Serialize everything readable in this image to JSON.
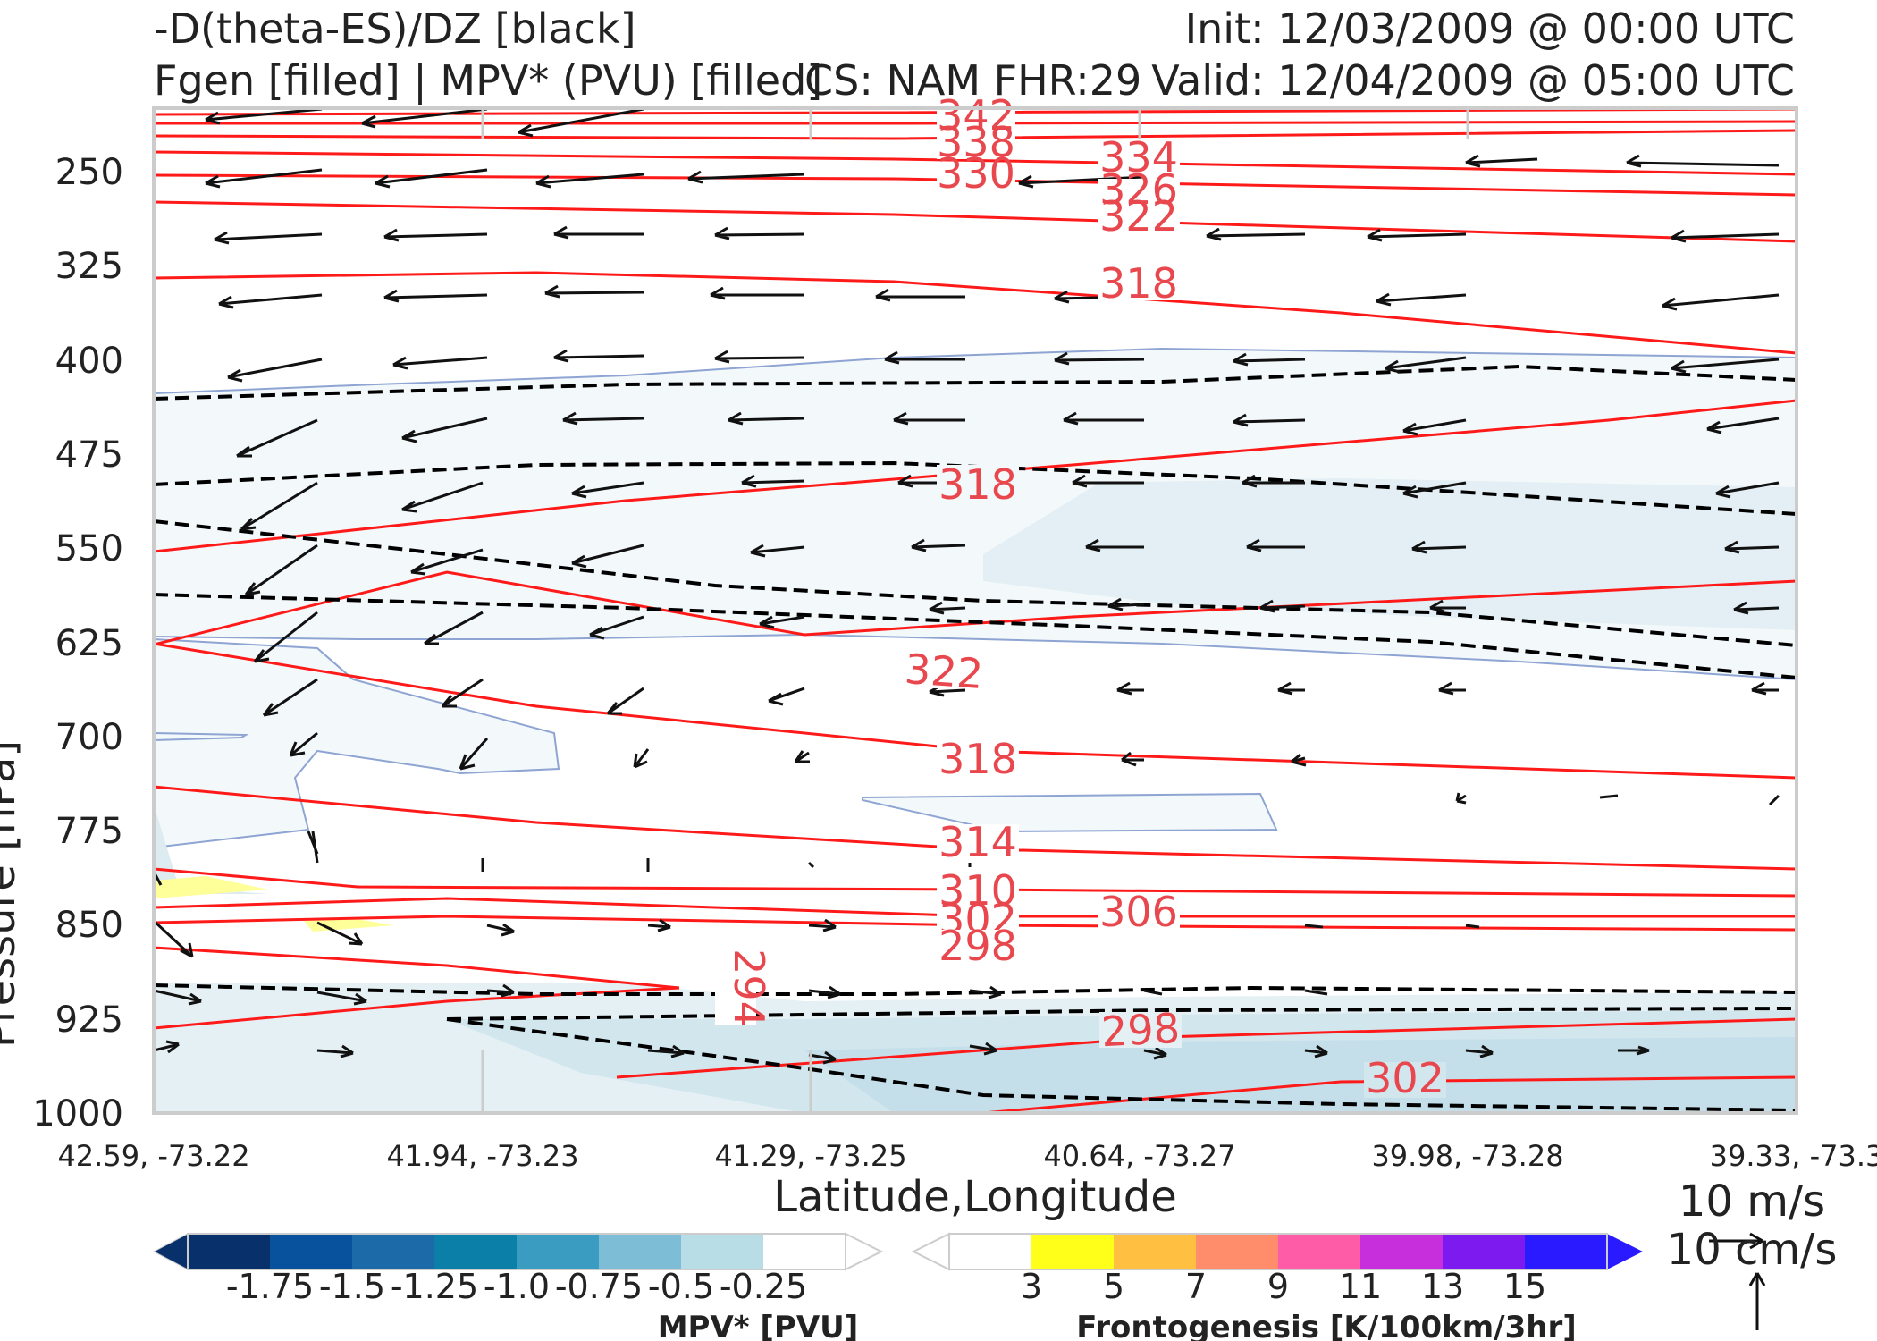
{
  "titles": {
    "line1_left": "-D(theta-ES)/DZ [black]",
    "line2_left": "Fgen [filled] | MPV* (PVU) [filled]",
    "line2_center": "CS: NAM FHR:29",
    "line1_right": "Init: 12/03/2009 @ 00:00 UTC",
    "line2_right": "Valid: 12/04/2009 @ 05:00 UTC"
  },
  "chart_data": {
    "type": "cross-section",
    "xlabel": "Latitude,Longitude",
    "ylabel": "Pressure [hPa]",
    "x_ticks": [
      "42.59, -73.22",
      "41.94, -73.23",
      "41.29, -73.25",
      "40.64, -73.27",
      "39.98, -73.28",
      "39.33, -73.3"
    ],
    "y_ticks": [
      250,
      325,
      400,
      475,
      550,
      625,
      700,
      775,
      850,
      925,
      1000
    ],
    "ylim": [
      1000,
      200
    ],
    "theta_es_contours": {
      "color": "#ff1a1a",
      "labels": [
        "342",
        "338",
        "330",
        "334",
        "326",
        "322",
        "318",
        "318",
        "322",
        "318",
        "314",
        "310",
        "306",
        "302",
        "298",
        "294",
        "298",
        "302"
      ]
    },
    "mpv_colorbar": {
      "title": "MPV* [PVU]",
      "ticks": [
        "-1.75",
        "-1.5",
        "-1.25",
        "-1.0",
        "-0.75",
        "-0.5",
        "-0.25"
      ],
      "colors": [
        "#08306b",
        "#08519c",
        "#2171b5",
        "#4292c6",
        "#6baed6",
        "#9ecae1",
        "#c6dbef",
        "#ffffff"
      ]
    },
    "fgen_colorbar": {
      "title": "Frontogenesis [K/100km/3hr]",
      "ticks": [
        "3",
        "5",
        "7",
        "9",
        "11",
        "13",
        "15"
      ],
      "colors": [
        "#ffffff",
        "#ffff00",
        "#ffbf33",
        "#ff8c66",
        "#ff5ca8",
        "#cc33e0",
        "#8a1aff",
        "#2a1aff"
      ]
    },
    "wind_key": {
      "horizontal": "10 m/s",
      "vertical": "10 cm/s"
    }
  }
}
